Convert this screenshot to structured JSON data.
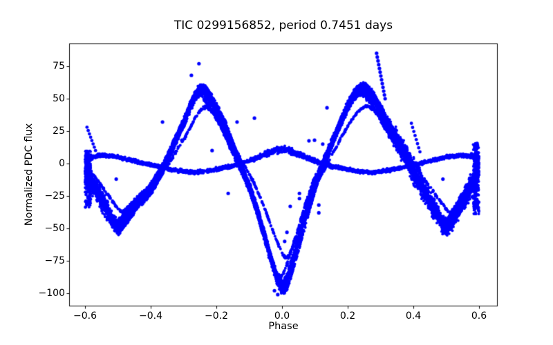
{
  "figure": {
    "background": "#ffffff",
    "axis_color": "#000000"
  },
  "chart_data": {
    "type": "scatter",
    "title": "TIC 0299156852, period 0.7451 days",
    "xlabel": "Phase",
    "ylabel": "Normalized PDC flux",
    "marker": {
      "color": "#0000ff",
      "radius": 2.0
    },
    "xlim": [
      -0.648,
      0.655
    ],
    "ylim": [
      -109.6,
      92.6
    ],
    "grid": false,
    "legend": null,
    "x_ticks": [
      {
        "value": -0.6,
        "label": "−0.6"
      },
      {
        "value": -0.4,
        "label": "−0.4"
      },
      {
        "value": -0.2,
        "label": "−0.2"
      },
      {
        "value": 0.0,
        "label": "0.0"
      },
      {
        "value": 0.2,
        "label": "0.2"
      },
      {
        "value": 0.4,
        "label": "0.4"
      },
      {
        "value": 0.6,
        "label": "0.6"
      }
    ],
    "y_ticks": [
      {
        "value": 75,
        "label": "75"
      },
      {
        "value": 50,
        "label": "50"
      },
      {
        "value": 25,
        "label": "25"
      },
      {
        "value": 0,
        "label": "0"
      },
      {
        "value": -25,
        "label": "−25"
      },
      {
        "value": -50,
        "label": "−50"
      },
      {
        "value": -75,
        "label": "−75"
      },
      {
        "value": -100,
        "label": "−100"
      }
    ],
    "series": [
      {
        "name": "primary-variation-band",
        "description": "Large-amplitude eclipsing-binary curve: peaks +58 at phase ±0.25, primary eclipse to −97 at phase 0, secondary eclipses to −50 at phase ±0.5",
        "n_points": 9000,
        "mean_curve": [
          [
            -0.6,
            -6
          ],
          [
            -0.58,
            -14
          ],
          [
            -0.55,
            -28
          ],
          [
            -0.52,
            -42
          ],
          [
            -0.5,
            -50
          ],
          [
            -0.48,
            -44
          ],
          [
            -0.46,
            -37
          ],
          [
            -0.44,
            -30
          ],
          [
            -0.42,
            -26
          ],
          [
            -0.4,
            -20
          ],
          [
            -0.37,
            -7
          ],
          [
            -0.35,
            3
          ],
          [
            -0.33,
            15
          ],
          [
            -0.3,
            31
          ],
          [
            -0.28,
            44
          ],
          [
            -0.26,
            54
          ],
          [
            -0.25,
            57
          ],
          [
            -0.24,
            57
          ],
          [
            -0.22,
            50
          ],
          [
            -0.2,
            41
          ],
          [
            -0.18,
            31
          ],
          [
            -0.15,
            12
          ],
          [
            -0.13,
            0
          ],
          [
            -0.1,
            -18
          ],
          [
            -0.08,
            -33
          ],
          [
            -0.06,
            -50
          ],
          [
            -0.04,
            -68
          ],
          [
            -0.02,
            -85
          ],
          [
            -0.01,
            -92
          ],
          [
            0.0,
            -96
          ],
          [
            0.01,
            -92
          ],
          [
            0.02,
            -85
          ],
          [
            0.04,
            -68
          ],
          [
            0.06,
            -50
          ],
          [
            0.08,
            -32
          ],
          [
            0.1,
            -16
          ],
          [
            0.13,
            2
          ],
          [
            0.15,
            15
          ],
          [
            0.18,
            33
          ],
          [
            0.2,
            44
          ],
          [
            0.22,
            53
          ],
          [
            0.24,
            58
          ],
          [
            0.25,
            58
          ],
          [
            0.27,
            53
          ],
          [
            0.3,
            40
          ],
          [
            0.32,
            30
          ],
          [
            0.35,
            18
          ],
          [
            0.38,
            5
          ],
          [
            0.4,
            -6
          ],
          [
            0.43,
            -20
          ],
          [
            0.46,
            -34
          ],
          [
            0.49,
            -47
          ],
          [
            0.5,
            -50
          ],
          [
            0.52,
            -43
          ],
          [
            0.55,
            -29
          ],
          [
            0.58,
            -15
          ],
          [
            0.6,
            -4
          ]
        ],
        "spread_halfwidth": [
          [
            -0.6,
            14
          ],
          [
            -0.58,
            12
          ],
          [
            -0.55,
            11
          ],
          [
            -0.52,
            9
          ],
          [
            -0.5,
            8
          ],
          [
            -0.45,
            6
          ],
          [
            -0.4,
            6
          ],
          [
            -0.35,
            5
          ],
          [
            -0.3,
            5.5
          ],
          [
            -0.25,
            6
          ],
          [
            -0.2,
            5.5
          ],
          [
            -0.15,
            5
          ],
          [
            -0.1,
            5
          ],
          [
            -0.05,
            6
          ],
          [
            0.0,
            7
          ],
          [
            0.05,
            6
          ],
          [
            0.1,
            5
          ],
          [
            0.15,
            5
          ],
          [
            0.2,
            5.5
          ],
          [
            0.25,
            6
          ],
          [
            0.3,
            7
          ],
          [
            0.34,
            10
          ],
          [
            0.38,
            13
          ],
          [
            0.42,
            13
          ],
          [
            0.46,
            11
          ],
          [
            0.5,
            9
          ],
          [
            0.54,
            10
          ],
          [
            0.57,
            12
          ],
          [
            0.6,
            14
          ]
        ],
        "ghost_tracks": [
          {
            "phase_shift": 0.006,
            "flux_scale": 1.04,
            "n_points": 1600,
            "jitter": 2.2
          },
          {
            "phase_shift": -0.006,
            "flux_scale": 0.92,
            "n_points": 1600,
            "jitter": 2.2
          },
          {
            "phase_shift": 0.012,
            "flux_scale": 0.76,
            "n_points": 900,
            "jitter": 1.6
          }
        ]
      },
      {
        "name": "low-amplitude-band",
        "description": "Thin low-amplitude sinusoidal band: peak ~+11 at phase 0, ~+6 at ±0.55, dips ~−7 at ±0.27",
        "n_points": 2600,
        "mean_curve": [
          [
            -0.6,
            4
          ],
          [
            -0.55,
            6.5
          ],
          [
            -0.5,
            5
          ],
          [
            -0.45,
            2
          ],
          [
            -0.4,
            -1
          ],
          [
            -0.35,
            -4
          ],
          [
            -0.3,
            -6
          ],
          [
            -0.27,
            -7
          ],
          [
            -0.22,
            -5.5
          ],
          [
            -0.15,
            -2
          ],
          [
            -0.1,
            2
          ],
          [
            -0.05,
            7
          ],
          [
            -0.02,
            10
          ],
          [
            0.0,
            11
          ],
          [
            0.02,
            10
          ],
          [
            0.05,
            7
          ],
          [
            0.1,
            2
          ],
          [
            0.15,
            -2
          ],
          [
            0.22,
            -5.5
          ],
          [
            0.27,
            -7
          ],
          [
            0.3,
            -6
          ],
          [
            0.35,
            -4
          ],
          [
            0.4,
            -1
          ],
          [
            0.45,
            2
          ],
          [
            0.5,
            5
          ],
          [
            0.55,
            6.5
          ],
          [
            0.6,
            4
          ]
        ],
        "spread_halfwidth": [
          [
            -0.6,
            2
          ],
          [
            -0.3,
            2
          ],
          [
            -0.1,
            2.2
          ],
          [
            -0.04,
            3.5
          ],
          [
            0.0,
            4.2
          ],
          [
            0.04,
            3.5
          ],
          [
            0.1,
            2.2
          ],
          [
            0.3,
            2
          ],
          [
            0.6,
            2
          ]
        ],
        "ghost_tracks": []
      }
    ],
    "edge_columns": [
      {
        "name": "left-edge-cluster",
        "phase_range": [
          -0.6,
          -0.582
        ],
        "flux_range": [
          -34,
          10
        ],
        "n_points": 220
      },
      {
        "name": "right-edge-cluster",
        "phase_range": [
          0.582,
          0.6
        ],
        "flux_range": [
          -39,
          16
        ],
        "n_points": 260
      }
    ],
    "streaks": [
      {
        "name": "flare-decay-streak",
        "from": [
          0.288,
          85
        ],
        "to": [
          0.314,
          50
        ],
        "n_dots": 13,
        "radius": 2.6
      },
      {
        "name": "left-edge-spike",
        "from": [
          -0.594,
          28
        ],
        "to": [
          -0.568,
          10
        ],
        "n_dots": 8,
        "radius": 2.4
      },
      {
        "name": "post-peak-streak",
        "from": [
          0.394,
          31
        ],
        "to": [
          0.42,
          9
        ],
        "n_dots": 8,
        "radius": 2.4
      }
    ],
    "outliers": [
      [
        -0.253,
        77
      ],
      [
        -0.276,
        68
      ],
      [
        -0.364,
        32
      ],
      [
        -0.305,
        18
      ],
      [
        -0.213,
        10
      ],
      [
        -0.137,
        32
      ],
      [
        -0.084,
        35
      ],
      [
        0.137,
        43
      ],
      [
        0.082,
        17.5
      ],
      [
        0.099,
        18
      ],
      [
        0.124,
        15
      ],
      [
        -0.164,
        -23
      ],
      [
        0.053,
        -23
      ],
      [
        0.053,
        -27
      ],
      [
        0.025,
        -33
      ],
      [
        0.112,
        -32
      ],
      [
        0.112,
        -38
      ],
      [
        0.015,
        -53
      ],
      [
        0.008,
        -60
      ],
      [
        -0.023,
        -98
      ],
      [
        -0.013,
        -101
      ],
      [
        0.49,
        -12
      ],
      [
        -0.505,
        -12
      ],
      [
        0.594,
        15.5
      ],
      [
        0.577,
        7.5
      ]
    ]
  }
}
